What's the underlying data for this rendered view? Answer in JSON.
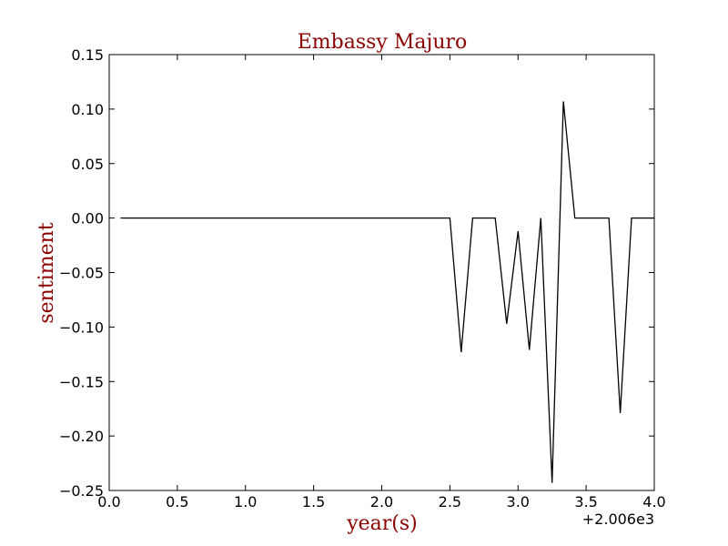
{
  "chart_data": {
    "type": "line",
    "title": "Embassy Majuro",
    "xlabel": "year(s)",
    "ylabel": "sentiment",
    "x_offset_label": "+2.006e3",
    "xlim": [
      0.0,
      4.0
    ],
    "ylim": [
      -0.25,
      0.15
    ],
    "grid": false,
    "x_ticks": [
      0.0,
      0.5,
      1.0,
      1.5,
      2.0,
      2.5,
      3.0,
      3.5,
      4.0
    ],
    "x_tick_labels": [
      "0.0",
      "0.5",
      "1.0",
      "1.5",
      "2.0",
      "2.5",
      "3.0",
      "3.5",
      "4.0"
    ],
    "y_ticks": [
      0.15,
      0.1,
      0.05,
      0.0,
      -0.05,
      -0.1,
      -0.15,
      -0.2,
      -0.25
    ],
    "y_tick_labels": [
      "0.15",
      "0.10",
      "0.05",
      "0.00",
      "−0.05",
      "−0.10",
      "−0.15",
      "−0.20",
      "−0.25"
    ],
    "series": [
      {
        "color": "#000000",
        "x": [
          0.083,
          2.5,
          2.583,
          2.667,
          2.833,
          2.917,
          3.0,
          3.083,
          3.167,
          3.25,
          3.333,
          3.417,
          3.667,
          3.75,
          3.833,
          4.0
        ],
        "y": [
          0.0,
          0.0,
          -0.123,
          0.0,
          0.0,
          -0.097,
          -0.012,
          -0.121,
          0.0,
          -0.243,
          0.107,
          0.0,
          0.0,
          -0.179,
          0.0,
          0.0
        ]
      }
    ]
  },
  "colors": {
    "title": "#8b0000",
    "axis_title": "#8b0000",
    "line": "#000000",
    "frame": "#000000"
  }
}
